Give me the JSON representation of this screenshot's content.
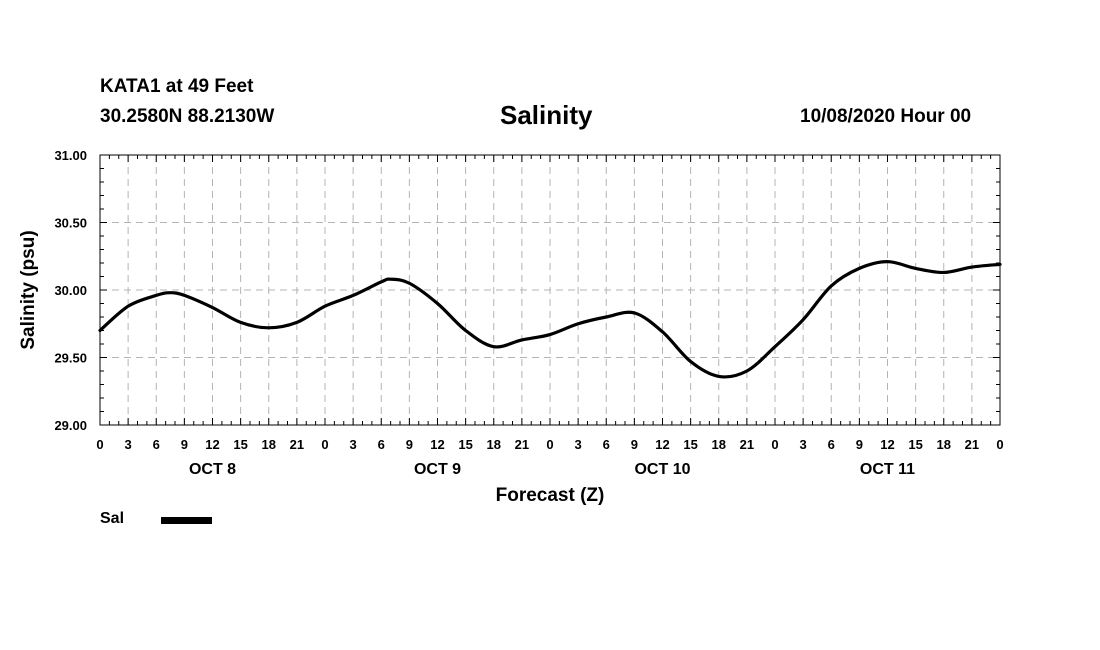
{
  "header": {
    "station": "KATA1 at 49 Feet",
    "coordinates": "30.2580N 88.2130W",
    "title": "Salinity",
    "datetime": "10/08/2020 Hour 00"
  },
  "legend": {
    "label": "Sal",
    "color": "#000000"
  },
  "chart_data": {
    "type": "line",
    "title": "Salinity",
    "xlabel": "Forecast (Z)",
    "ylabel": "Salinity (psu)",
    "ylim": [
      29.0,
      31.0
    ],
    "yticks": [
      "29.00",
      "29.50",
      "30.00",
      "30.50",
      "31.00"
    ],
    "xlim": [
      0,
      96
    ],
    "xtick_labels": [
      "0",
      "3",
      "6",
      "9",
      "12",
      "15",
      "18",
      "21",
      "0",
      "3",
      "6",
      "9",
      "12",
      "15",
      "18",
      "21",
      "0",
      "3",
      "6",
      "9",
      "12",
      "15",
      "18",
      "21",
      "0",
      "3",
      "6",
      "9",
      "12",
      "15",
      "18",
      "21",
      "0"
    ],
    "day_labels": [
      {
        "label": "OCT 8",
        "hour": 12
      },
      {
        "label": "OCT 9",
        "hour": 36
      },
      {
        "label": "OCT 10",
        "hour": 60
      },
      {
        "label": "OCT 11",
        "hour": 84
      }
    ],
    "grid": true,
    "series": [
      {
        "name": "Sal",
        "x": [
          0,
          3,
          6,
          7.5,
          9,
          12,
          15,
          18,
          21,
          24,
          27,
          30,
          31,
          33,
          36,
          39,
          42,
          45,
          48,
          51,
          54,
          57,
          60,
          63,
          66,
          69,
          72,
          75,
          78,
          81,
          84,
          87,
          90,
          93,
          96
        ],
        "values": [
          29.7,
          29.88,
          29.96,
          29.98,
          29.96,
          29.87,
          29.76,
          29.72,
          29.76,
          29.88,
          29.96,
          30.06,
          30.08,
          30.05,
          29.9,
          29.7,
          29.58,
          29.63,
          29.67,
          29.75,
          29.8,
          29.83,
          29.69,
          29.47,
          29.36,
          29.4,
          29.58,
          29.78,
          30.03,
          30.16,
          30.21,
          30.16,
          30.13,
          30.17,
          30.19
        ]
      }
    ]
  }
}
